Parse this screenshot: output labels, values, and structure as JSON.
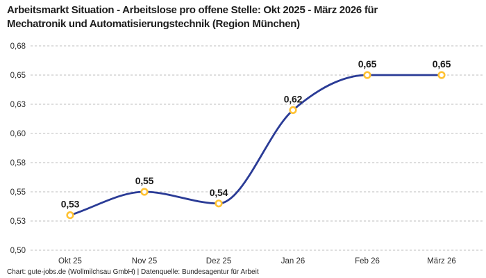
{
  "page": {
    "title_line1": "Arbeitsmarkt Situation - Arbeitslose pro offene Stelle: Okt 2025 - März 2026 für",
    "title_line2": "Mechatronik und Automatisierungstechnik (Region München)",
    "footer": "Chart: gute-jobs.de (Wollmilchsau GmbH) | Datenquelle: Bundesagentur für Arbeit"
  },
  "chart_data": {
    "type": "line",
    "title": "Arbeitsmarkt Situation - Arbeitslose pro offene Stelle: Okt 2025 - März 2026 für Mechatronik und Automatisierungstechnik (Region München)",
    "categories": [
      "Okt 25",
      "Nov 25",
      "Dez 25",
      "Jan 26",
      "Feb 26",
      "März 26"
    ],
    "values": [
      0.53,
      0.55,
      0.54,
      0.62,
      0.65,
      0.65
    ],
    "point_labels": [
      "0,53",
      "0,55",
      "0,54",
      "0,62",
      "0,65",
      "0,65"
    ],
    "xlabel": "",
    "ylabel": "",
    "ylim": [
      0.5,
      0.675
    ],
    "y_ticks": [
      {
        "value": 0.675,
        "label": "0,68"
      },
      {
        "value": 0.65,
        "label": "0,65"
      },
      {
        "value": 0.625,
        "label": "0,63"
      },
      {
        "value": 0.6,
        "label": "0,60"
      },
      {
        "value": 0.575,
        "label": "0,58"
      },
      {
        "value": 0.55,
        "label": "0,55"
      },
      {
        "value": 0.525,
        "label": "0,53"
      },
      {
        "value": 0.5,
        "label": "0,50"
      }
    ],
    "grid": {
      "horizontal": true,
      "vertical": false,
      "style": "dashed"
    },
    "legend_position": "none",
    "interpolation": "monotone",
    "colors": {
      "line": "#2A3B96",
      "marker_stroke": "#FFC233",
      "marker_fill": "#FFFFFF",
      "grid": "#C9C9C9",
      "title_text": "#1D1D1D",
      "tick_text": "#2E2E2E",
      "point_label_text": "#1A1A1A"
    }
  }
}
